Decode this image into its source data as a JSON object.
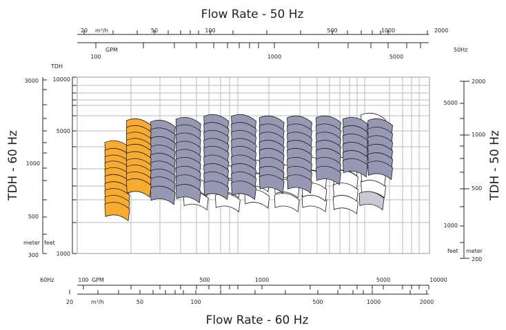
{
  "chart_data": {
    "type": "scatter",
    "title_top": "Flow Rate - 50 Hz",
    "title_bottom": "Flow Rate - 60 Hz",
    "ylabel_left": "TDH - 60 Hz",
    "ylabel_right": "TDH - 50 Hz",
    "left_axis_caption": "TDH",
    "hz50_label": "50Hz",
    "hz60_label": "60Hz",
    "unit_m3h": "m³/h",
    "unit_gpm": "GPM",
    "unit_meter": "meter",
    "unit_feet": "feet",
    "grid": true,
    "top_m3h_ticks": [
      "20",
      "50",
      "100",
      "500",
      "1000",
      "2000"
    ],
    "top_gpm_ticks": [
      "100",
      "1000",
      "5000"
    ],
    "bottom_gpm_ticks": [
      "100",
      "500",
      "1000",
      "5000",
      "10000"
    ],
    "bottom_m3h_ticks": [
      "20",
      "50",
      "100",
      "500",
      "1000",
      "2000"
    ],
    "left_meter_ticks": [
      "1000",
      "5000",
      "10000"
    ],
    "left_feet_ticks": [
      "300",
      "500",
      "1000",
      "3000"
    ],
    "right_feet_ticks": [
      "1000",
      "5000"
    ],
    "right_meter_ticks": [
      "200",
      "500",
      "1000",
      "2000"
    ],
    "colors": {
      "orange": "#f7ab33",
      "purple": "#9798b4",
      "white": "#ffffff",
      "light_grey": "#c9cad6",
      "grid": "#b8b8b8"
    },
    "series": [
      {
        "color": "orange",
        "columns": [
          {
            "gpm": 155,
            "tdh": [
              3980,
              3600,
              3300,
              3050,
              2800,
              2560,
              2330,
              2130,
              1950,
              1780
            ]
          },
          {
            "gpm": 205,
            "tdh": [
              5300,
              4850,
              4450,
              4100,
              3800,
              3450,
              3150,
              2900,
              2650,
              2420
            ]
          }
        ]
      },
      {
        "color": "purple",
        "columns": [
          {
            "gpm": 280,
            "tdh": [
              5200,
              4700,
              4200,
              3760,
              3380,
              3050,
              2750,
              2480,
              2200
            ]
          },
          {
            "gpm": 390,
            "tdh": [
              5400,
              4900,
              4400,
              3950,
              3550,
              3200,
              2850,
              2550,
              2250
            ]
          },
          {
            "gpm": 560,
            "tdh": [
              5600,
              5050,
              4550,
              4100,
              3700,
              3300,
              2950,
              2650,
              2350
            ]
          },
          {
            "gpm": 800,
            "tdh": [
              5600,
              5050,
              4550,
              4100,
              3700,
              3300,
              2950,
              2650,
              2350
            ]
          },
          {
            "gpm": 1150,
            "tdh": [
              5500,
              4950,
              4450,
              4000,
              3600,
              3200,
              2850,
              2550
            ]
          },
          {
            "gpm": 1650,
            "tdh": [
              5500,
              4950,
              4450,
              4000,
              3600,
              3200,
              2850,
              2550
            ]
          },
          {
            "gpm": 2400,
            "tdh": [
              5500,
              4950,
              4450,
              4000,
              3600,
              3200,
              2850
            ]
          },
          {
            "gpm": 3400,
            "tdh": [
              5400,
              4850,
              4350,
              3900,
              3500,
              3150
            ]
          },
          {
            "gpm": 4700,
            "tdh": [
              5300,
              4750,
              4250,
              3800,
              3400,
              3050
            ]
          }
        ]
      },
      {
        "color": "white",
        "columns": [
          {
            "gpm": 430,
            "tdh": [
              2050,
              2450
            ]
          },
          {
            "gpm": 650,
            "tdh": [
              2000,
              2400,
              2900
            ]
          },
          {
            "gpm": 950,
            "tdh": [
              2100,
              2600,
              3100
            ]
          },
          {
            "gpm": 1400,
            "tdh": [
              2000,
              2400,
              2900
            ]
          },
          {
            "gpm": 2000,
            "tdh": [
              2000,
              2300,
              2700,
              3200
            ]
          },
          {
            "gpm": 3000,
            "tdh": [
              1950,
              2300,
              2700,
              3200
            ]
          },
          {
            "gpm": 4300,
            "tdh": [
              2400,
              2800,
              3300,
              5700
            ]
          }
        ]
      },
      {
        "color": "light_grey",
        "columns": [
          {
            "gpm": 4200,
            "tdh": [
              2050,
              3850
            ]
          }
        ]
      }
    ]
  }
}
